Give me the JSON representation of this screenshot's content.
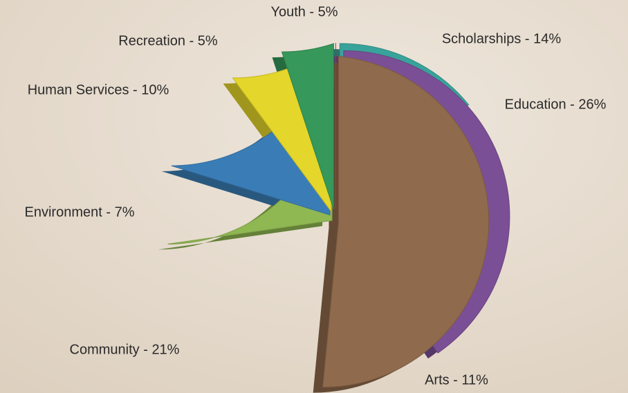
{
  "chart_data": {
    "type": "pie",
    "values": [
      14,
      26,
      11,
      21,
      7,
      10,
      5,
      5
    ],
    "value_labels": [
      "Scholarships - 14%",
      "Education - 26%",
      "Arts - 11%",
      "Community - 21%",
      "Environment - 7%",
      "Human Services - 10%",
      "Recreation - 5%",
      "Youth - 5%"
    ],
    "colors": [
      "#38a39a",
      "#7b4f96",
      "#8f6a4c",
      "#8fb752",
      "#3a7db6",
      "#e4d62a",
      "#36985a",
      "#d63c3f"
    ]
  }
}
